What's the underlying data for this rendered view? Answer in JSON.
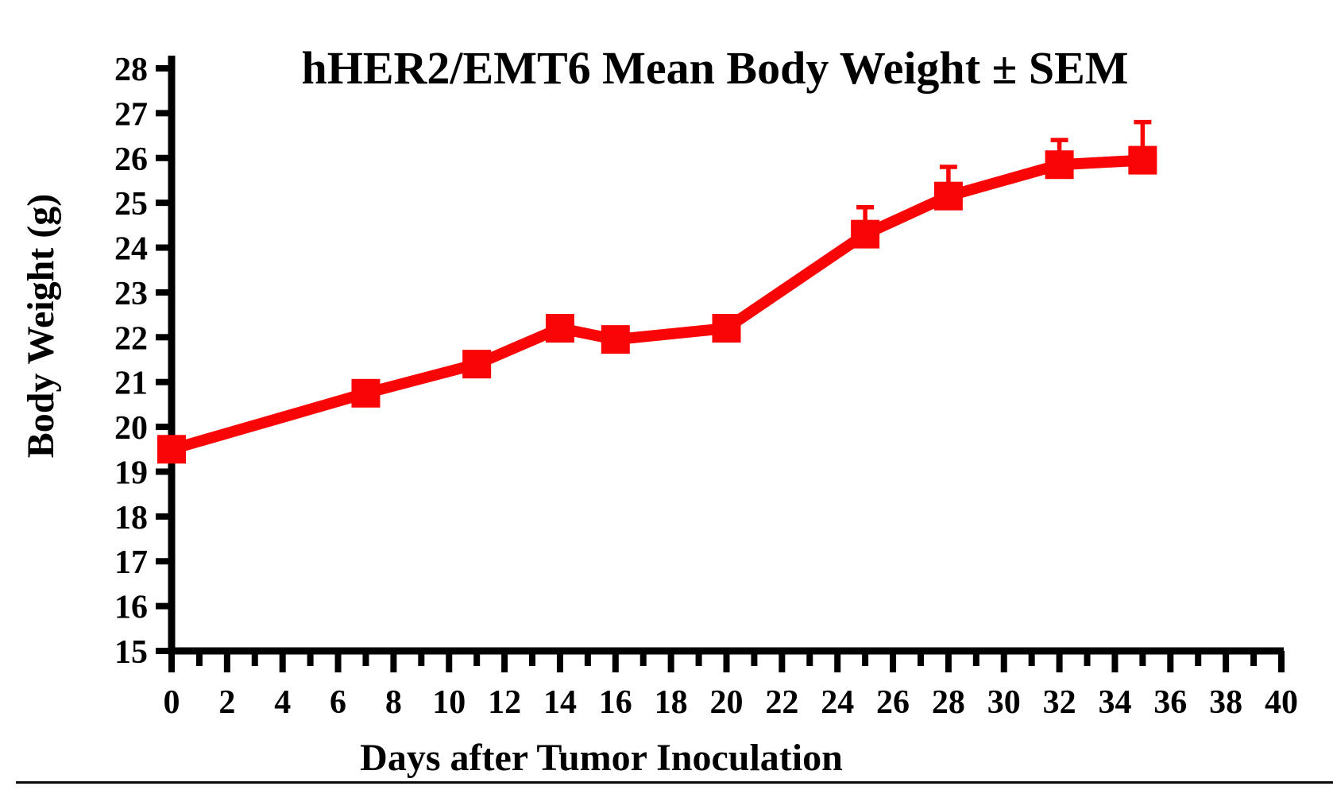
{
  "page": {
    "background": "#ffffff"
  },
  "chart_data": {
    "type": "line",
    "title": "hHER2/EMT6 Mean Body Weight ± SEM",
    "xlabel": "Days after Tumor Inoculation",
    "ylabel": "Body Weight (g)",
    "series": [
      {
        "name": "hHER2/EMT6 mean body weight",
        "color": "#f90505",
        "marker": "square",
        "x": [
          0,
          7,
          11,
          14,
          16,
          20,
          25,
          28,
          32,
          35
        ],
        "y": [
          19.5,
          20.75,
          21.4,
          22.2,
          21.95,
          22.2,
          24.3,
          25.15,
          25.85,
          25.95
        ],
        "sem_upper": [
          0,
          0,
          0,
          0,
          0,
          0,
          0.6,
          0.65,
          0.55,
          0.85
        ]
      }
    ],
    "xlim": [
      0,
      40
    ],
    "ylim": [
      15,
      28
    ],
    "x_major_tick_step": 2,
    "x_minor_tick_step": 1,
    "y_tick_step": 1,
    "x_tick_labels": [
      "0",
      "2",
      "4",
      "6",
      "8",
      "10",
      "12",
      "14",
      "16",
      "18",
      "20",
      "22",
      "24",
      "26",
      "28",
      "30",
      "32",
      "34",
      "36",
      "38",
      "40"
    ],
    "y_tick_labels": [
      "15",
      "16",
      "17",
      "18",
      "19",
      "20",
      "21",
      "22",
      "23",
      "24",
      "25",
      "26",
      "27",
      "28"
    ],
    "grid": false,
    "legend": "none",
    "axis_color": "#000000"
  }
}
